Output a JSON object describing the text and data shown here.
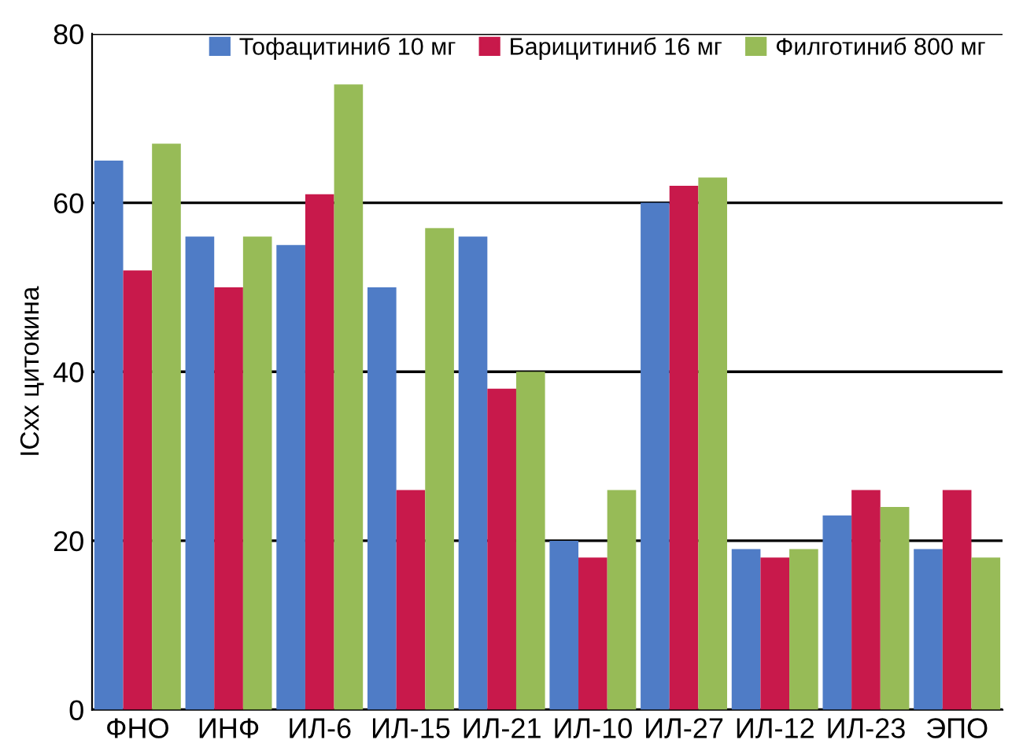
{
  "chart_data": {
    "type": "bar",
    "ylabel": "ICxx цитокина",
    "categories": [
      "ФНО",
      "ИНФ",
      "ИЛ-6",
      "ИЛ-15",
      "ИЛ-21",
      "ИЛ-10",
      "ИЛ-27",
      "ИЛ-12",
      "ИЛ-23",
      "ЭПО"
    ],
    "series": [
      {
        "name": "Тофацитиниб 10 мг",
        "color": "#4f7cc6",
        "values": [
          65,
          56,
          55,
          50,
          56,
          20,
          60,
          19,
          23,
          19
        ]
      },
      {
        "name": "Барицитиниб 16 мг",
        "color": "#c8194b",
        "values": [
          52,
          50,
          61,
          26,
          38,
          18,
          62,
          18,
          26,
          26
        ]
      },
      {
        "name": "Филготиниб 800 мг",
        "color": "#97bb57",
        "values": [
          67,
          56,
          74,
          57,
          40,
          26,
          63,
          19,
          24,
          18
        ]
      }
    ],
    "ylim": [
      0,
      80
    ],
    "yticks": [
      0,
      20,
      40,
      60,
      80
    ],
    "grid": "y",
    "legend": "top right"
  }
}
